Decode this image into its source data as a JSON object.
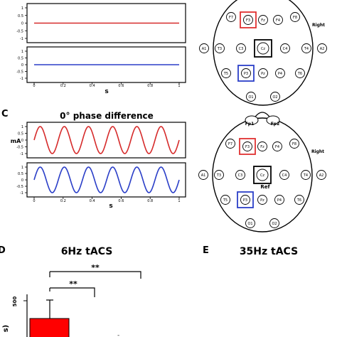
{
  "panels": {
    "C": "C",
    "D": "D",
    "E": "E"
  },
  "chart_data": [
    {
      "type": "line",
      "panel": "",
      "title": "",
      "xlabel": "s",
      "ylabel": "",
      "xlim": [
        0,
        1
      ],
      "ylim": [
        -1,
        1
      ],
      "xticks": [
        "0",
        "0.2",
        "0.4",
        "0.6",
        "0.8",
        "1"
      ],
      "yticks_top": [
        "1",
        "0.5",
        "0",
        "-0.5",
        "-1"
      ],
      "yticks_bottom": [
        "1",
        "0.5",
        "0",
        "-0.5",
        "-1"
      ],
      "series": [
        {
          "color": "#d62b2b",
          "amplitude": 0,
          "frequency_hz": 0,
          "phase_deg": 0
        },
        {
          "color": "#2b3fc8",
          "amplitude": 0,
          "frequency_hz": 0,
          "phase_deg": 0
        }
      ]
    },
    {
      "type": "line",
      "panel": "C",
      "title": "0° phase difference",
      "xlabel": "s",
      "ylabel": "mA",
      "xlim": [
        0,
        1
      ],
      "ylim": [
        -1,
        1
      ],
      "xticks": [
        "0",
        "0.2",
        "0.4",
        "0.6",
        "0.8",
        "1"
      ],
      "yticks_top": [
        "1",
        "0.5",
        "0",
        "-0.5",
        "-1"
      ],
      "yticks_bottom": [
        "1",
        "0.5",
        "0",
        "-0.5",
        "-1"
      ],
      "series": [
        {
          "color": "#d62b2b",
          "amplitude": 1,
          "frequency_hz": 6,
          "phase_deg": 0
        },
        {
          "color": "#2b3fc8",
          "amplitude": 1,
          "frequency_hz": 6,
          "phase_deg": 0
        }
      ]
    },
    {
      "type": "bar",
      "panel": "D",
      "title": "6Hz tACS",
      "ylabel": "s)",
      "yticks": [
        "500"
      ],
      "significance": [
        "**",
        "**"
      ],
      "bar_color": "#ff0000"
    },
    {
      "type": "bar",
      "panel": "E",
      "title": "35Hz tACS"
    }
  ],
  "montages": [
    {
      "electrodes": [
        "F7",
        "F3",
        "Fz",
        "F4",
        "F8",
        "A1",
        "T3",
        "C3",
        "Cz",
        "C4",
        "T4",
        "A2",
        "T5",
        "P3",
        "Pz",
        "P4",
        "T6",
        "O1",
        "O2"
      ],
      "side_label": "Right",
      "red_box": "F3",
      "black_box": "Cz",
      "blue_box": "P3"
    },
    {
      "electrodes": [
        "Fp1",
        "Fp2",
        "F7",
        "F3",
        "Fz",
        "F4",
        "F8",
        "A1",
        "T3",
        "C3",
        "Cz",
        "C4",
        "T4",
        "A2",
        "T5",
        "P3",
        "Pz",
        "P4",
        "T6",
        "O1",
        "O2"
      ],
      "side_label": "Right",
      "ref_label": "Ref",
      "red_box": "F3",
      "black_box": "Cz",
      "blue_box": "P3"
    }
  ]
}
